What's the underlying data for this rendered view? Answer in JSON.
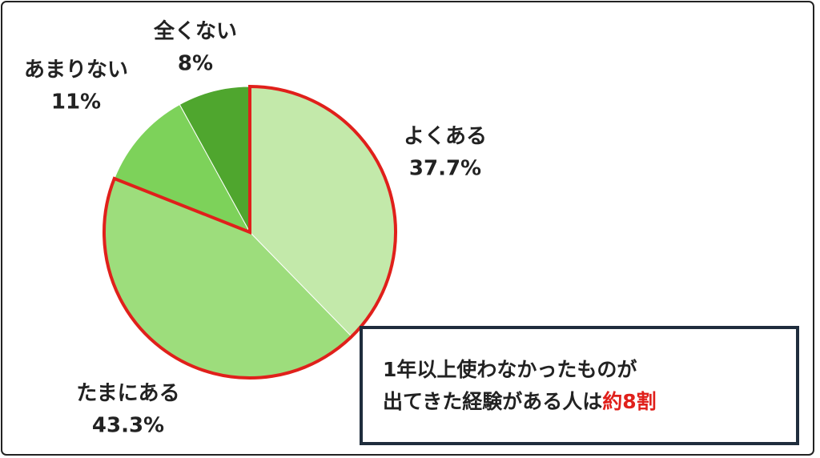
{
  "chart_data": {
    "type": "pie",
    "categories": [
      "よくある",
      "たまにある",
      "あまりない",
      "全くない"
    ],
    "values": [
      37.7,
      43.3,
      11,
      8
    ],
    "value_labels": [
      "37.7%",
      "43.3%",
      "11%",
      "8%"
    ],
    "colors": [
      "#c3e9aa",
      "#9ddd7c",
      "#7dd25a",
      "#4fa62e"
    ],
    "annotation": {
      "lines": [
        "1年以上使わなかったものが",
        "出てきた経験がある人は"
      ],
      "highlight": "約8割"
    }
  }
}
